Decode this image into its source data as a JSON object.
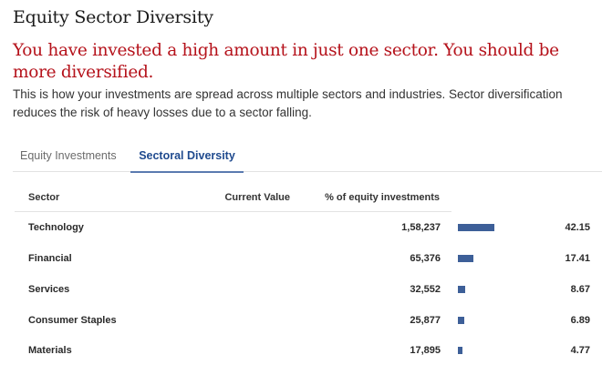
{
  "page": {
    "title": "Equity Sector Diversity",
    "warning": "You have invested a high amount in just one sector. You should be more diversified.",
    "description": "This is how your investments are spread across multiple sectors and industries. Sector diversification reduces the risk of heavy losses due to a sector falling."
  },
  "tabs": [
    {
      "label": "Equity Investments",
      "active": false
    },
    {
      "label": "Sectoral Diversity",
      "active": true
    }
  ],
  "table": {
    "headers": {
      "sector": "Sector",
      "current_value": "Current Value",
      "percent": "% of equity investments"
    },
    "rows": [
      {
        "sector": "Technology",
        "current_value": "1,58,237",
        "percent": "42.15",
        "pct_value": 42.15
      },
      {
        "sector": "Financial",
        "current_value": "65,376",
        "percent": "17.41",
        "pct_value": 17.41
      },
      {
        "sector": "Services",
        "current_value": "32,552",
        "percent": "8.67",
        "pct_value": 8.67
      },
      {
        "sector": "Consumer Staples",
        "current_value": "25,877",
        "percent": "6.89",
        "pct_value": 6.89
      },
      {
        "sector": "Materials",
        "current_value": "17,895",
        "percent": "4.77",
        "pct_value": 4.77
      }
    ]
  },
  "colors": {
    "warning": "#b5121b",
    "accent": "#1f4a8e",
    "bar": "#3d5f98"
  }
}
